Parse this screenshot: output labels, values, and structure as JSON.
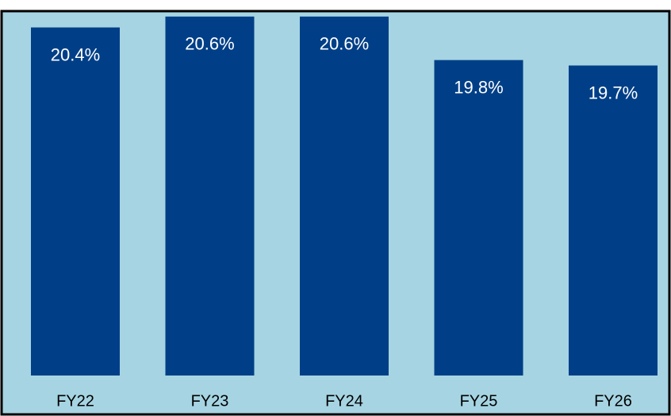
{
  "chart_data": {
    "type": "bar",
    "categories": [
      "FY22",
      "FY23",
      "FY24",
      "FY25",
      "FY26"
    ],
    "values": [
      20.4,
      20.6,
      20.6,
      19.8,
      19.7
    ],
    "value_labels": [
      "20.4%",
      "20.6%",
      "20.6%",
      "19.8%",
      "19.7%"
    ],
    "color": "#003f87",
    "ylim": [
      14,
      20.7
    ]
  }
}
